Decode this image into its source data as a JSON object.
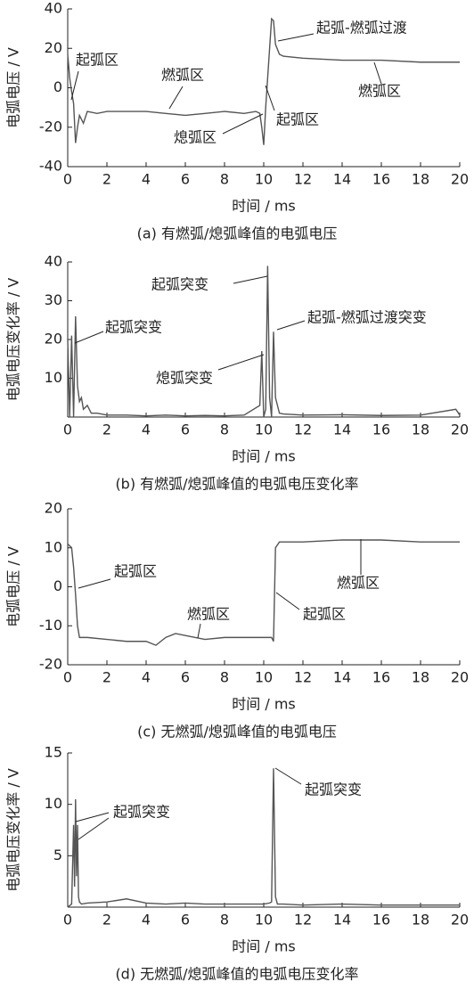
{
  "chart_data": [
    {
      "type": "line",
      "caption": "(a)  有燃弧/熄弧峰值的电弧电压",
      "x_label": "时间 / ms",
      "y_label": "电弧电压 / V",
      "xlim": [
        0,
        20
      ],
      "xticks": [
        0,
        2,
        4,
        6,
        8,
        10,
        12,
        14,
        16,
        18,
        20
      ],
      "ylim": [
        -40,
        40
      ],
      "yticks": [
        -40,
        -20,
        0,
        20,
        40
      ],
      "series": [
        {
          "color": "#555555",
          "x": [
            0,
            0.1,
            0.2,
            0.3,
            0.4,
            0.5,
            0.6,
            0.8,
            1,
            1.5,
            2,
            3,
            4,
            5,
            6,
            7,
            8,
            9,
            9.6,
            9.8,
            9.9,
            10,
            10.1,
            10.2,
            10.3,
            10.4,
            10.5,
            10.6,
            10.8,
            11,
            12,
            14,
            16,
            18,
            20
          ],
          "values": [
            17,
            5,
            -2,
            -8,
            -28,
            -20,
            -14,
            -18,
            -12,
            -13,
            -12,
            -12,
            -12,
            -13,
            -14,
            -13,
            -12,
            -13,
            -12,
            -13,
            -20,
            -29,
            -10,
            5,
            20,
            35,
            34,
            22,
            17,
            16,
            15,
            14,
            14,
            13,
            13
          ]
        }
      ],
      "annotations": [
        "起弧区",
        "燃弧区",
        "熄弧区",
        "起弧区",
        "起弧-燃弧过渡",
        "燃弧区"
      ]
    },
    {
      "type": "line",
      "caption": "(b)  有燃弧/熄弧峰值的电弧电压变化率",
      "x_label": "时间 / ms",
      "y_label": "电弧电压变化率 / V",
      "xlim": [
        0,
        20
      ],
      "xticks": [
        0,
        2,
        4,
        6,
        8,
        10,
        12,
        14,
        16,
        18,
        20
      ],
      "ylim": [
        0,
        40
      ],
      "yticks": [
        10,
        20,
        30,
        40
      ],
      "series": [
        {
          "color": "#555555",
          "x": [
            0,
            0.1,
            0.2,
            0.3,
            0.4,
            0.5,
            0.6,
            0.7,
            0.8,
            1,
            1.2,
            1.5,
            2,
            3,
            4,
            5,
            6,
            7,
            8,
            9,
            9.8,
            9.9,
            10,
            10.1,
            10.2,
            10.3,
            10.4,
            10.5,
            10.6,
            10.8,
            11,
            12,
            14,
            16,
            18,
            19.8,
            20
          ],
          "values": [
            20,
            0,
            21,
            0,
            26,
            8,
            4,
            5,
            2,
            3,
            1,
            1,
            0.5,
            0.5,
            0.3,
            0.5,
            0.3,
            0.4,
            0.3,
            0.5,
            3,
            17,
            0,
            2,
            39,
            5,
            0,
            22,
            5,
            1,
            0.8,
            0.5,
            0.6,
            0.4,
            0.5,
            2,
            0.5
          ]
        }
      ],
      "annotations": [
        "起弧突变",
        "起弧突变",
        "熄弧突变",
        "起弧-燃弧过渡突变"
      ]
    },
    {
      "type": "line",
      "caption": "(c)  无燃弧/熄弧峰值的电弧电压",
      "x_label": "时间 / ms",
      "y_label": "电弧电压 / V",
      "xlim": [
        0,
        20
      ],
      "xticks": [
        0,
        2,
        4,
        6,
        8,
        10,
        12,
        14,
        16,
        18,
        20
      ],
      "ylim": [
        -20,
        20
      ],
      "yticks": [
        -20,
        -10,
        0,
        10,
        20
      ],
      "series": [
        {
          "color": "#555555",
          "x": [
            0,
            0.2,
            0.3,
            0.4,
            0.5,
            0.6,
            1,
            2,
            3,
            4,
            4.5,
            5,
            5.5,
            6,
            7,
            8,
            9,
            10,
            10.4,
            10.5,
            10.6,
            10.8,
            11,
            12,
            14,
            16,
            18,
            20
          ],
          "values": [
            11,
            10,
            5,
            -2,
            -10,
            -13,
            -13,
            -13.5,
            -14,
            -14,
            -15,
            -13,
            -12,
            -12.5,
            -13.5,
            -13,
            -13,
            -13,
            -13,
            -14,
            10,
            11.5,
            11.5,
            11.5,
            12,
            12,
            11.5,
            11.5
          ]
        }
      ],
      "annotations": [
        "起弧区",
        "燃弧区",
        "起弧区",
        "燃弧区"
      ]
    },
    {
      "type": "line",
      "caption": "(d)  无燃弧/熄弧峰值的电弧电压变化率",
      "x_label": "时间 / ms",
      "y_label": "电弧电压变化率 / V",
      "xlim": [
        0,
        20
      ],
      "xticks": [
        0,
        2,
        4,
        6,
        8,
        10,
        12,
        14,
        16,
        18,
        20
      ],
      "ylim": [
        0,
        15
      ],
      "yticks": [
        5,
        10,
        15
      ],
      "series": [
        {
          "color": "#555555",
          "x": [
            0,
            0.2,
            0.3,
            0.35,
            0.4,
            0.45,
            0.5,
            0.55,
            0.6,
            0.7,
            1,
            2,
            3,
            4,
            5,
            6,
            7,
            8,
            9,
            10,
            10.3,
            10.4,
            10.5,
            10.6,
            10.7,
            11,
            12,
            14,
            16,
            18,
            20
          ],
          "values": [
            0,
            0.3,
            8,
            2,
            10.5,
            3,
            8,
            1,
            0.5,
            0.3,
            0.4,
            0.5,
            0.8,
            0.4,
            0.3,
            0.4,
            0.3,
            0.3,
            0.3,
            0.3,
            0.4,
            0.5,
            13.5,
            1,
            0.3,
            0.3,
            0.2,
            0.3,
            0.2,
            0.2,
            0.2
          ]
        }
      ],
      "annotations": [
        "起弧突变",
        "起弧突变"
      ]
    }
  ]
}
